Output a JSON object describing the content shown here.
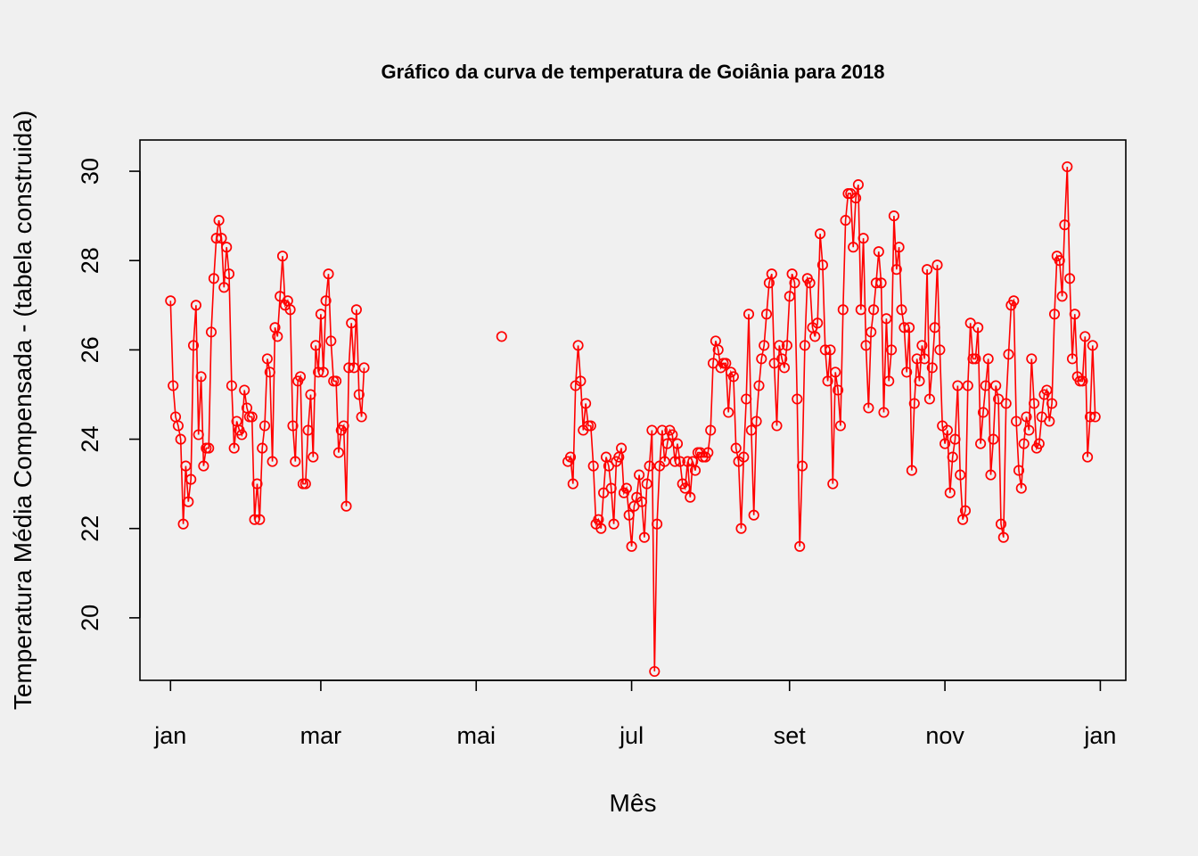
{
  "chart_data": {
    "type": "line",
    "title": "Gráfico da curva de temperatura de Goiânia para 2018",
    "xlabel": "Mês",
    "ylabel": "Temperatura Média Compensada - (tabela construida)",
    "xlim": [
      -12,
      375
    ],
    "ylim": [
      18.6,
      30.7
    ],
    "x_ticks": [
      {
        "label": "jan",
        "day": 0
      },
      {
        "label": "mar",
        "day": 59
      },
      {
        "label": "mai",
        "day": 120
      },
      {
        "label": "jul",
        "day": 181
      },
      {
        "label": "set",
        "day": 243
      },
      {
        "label": "nov",
        "day": 304
      },
      {
        "label": "jan",
        "day": 365
      }
    ],
    "y_ticks": [
      20,
      22,
      24,
      26,
      28,
      30
    ],
    "grid": false,
    "legend": "none",
    "color": "#ff0000",
    "series": [
      {
        "segments": [
          {
            "start_day": 0,
            "values": [
              27.1,
              25.2,
              24.5,
              24.3,
              24.0,
              22.1,
              23.4,
              22.6,
              23.1,
              26.1,
              27.0,
              24.1,
              25.4,
              23.4,
              23.8,
              23.8,
              26.4,
              27.6,
              28.5,
              28.9,
              28.5,
              27.4,
              28.3,
              27.7,
              25.2,
              23.8,
              24.4,
              24.2,
              24.1,
              25.1,
              24.7,
              24.5,
              24.5,
              22.2,
              23.0,
              22.2,
              23.8,
              24.3,
              25.8,
              25.5,
              23.5,
              26.5,
              26.3,
              27.2,
              28.1,
              27.0,
              27.1,
              26.9,
              24.3,
              23.5,
              25.3,
              25.4,
              23.0,
              23.0,
              24.2,
              25.0,
              23.6,
              26.1,
              25.5,
              26.8,
              25.5,
              27.1,
              27.7,
              26.2,
              25.3,
              25.3,
              23.7,
              24.2,
              24.3,
              22.5,
              25.6,
              26.6,
              25.6,
              26.9,
              25.0,
              24.5,
              25.6
            ]
          },
          {
            "start_day": 130,
            "values": [
              26.3
            ]
          },
          {
            "start_day": 156,
            "values": [
              23.5,
              23.6,
              23.0,
              25.2,
              26.1,
              25.3,
              24.2,
              24.8,
              24.3,
              24.3,
              23.4,
              22.1,
              22.2,
              22.0,
              22.8,
              23.6,
              23.4,
              22.9,
              22.1,
              23.5,
              23.6,
              23.8,
              22.8,
              22.9,
              22.3,
              21.6,
              22.5,
              22.7,
              23.2,
              22.6,
              21.8,
              23.0,
              23.4,
              24.2,
              18.8,
              22.1,
              23.4,
              24.2,
              23.5,
              23.9,
              24.2,
              24.1,
              23.5,
              23.9,
              23.5,
              23.0,
              22.9,
              23.5,
              22.7,
              23.5,
              23.3,
              23.7,
              23.7,
              23.6,
              23.6,
              23.7,
              24.2,
              25.7,
              26.2,
              26.0,
              25.6,
              25.7,
              25.7,
              24.6,
              25.5,
              25.4,
              23.8,
              23.5,
              22.0,
              23.6,
              24.9,
              26.8,
              24.2,
              22.3,
              24.4,
              25.2,
              25.8,
              26.1,
              26.8,
              27.5,
              27.7,
              25.7,
              24.3,
              26.1,
              25.8,
              25.6,
              26.1,
              27.2,
              27.7,
              27.5,
              24.9,
              21.6,
              23.4,
              26.1,
              27.6,
              27.5,
              26.5,
              26.3,
              26.6,
              28.6,
              27.9,
              26.0,
              25.3,
              26.0,
              23.0,
              25.5,
              25.1,
              24.3,
              26.9,
              28.9,
              29.5,
              29.5,
              28.3,
              29.4,
              29.7,
              26.9,
              28.5,
              26.1,
              24.7,
              26.4,
              26.9,
              27.5,
              28.2,
              27.5,
              24.6,
              26.7,
              25.3,
              26.0,
              29.0,
              27.8,
              28.3,
              26.9,
              26.5,
              25.5,
              26.5,
              23.3,
              24.8,
              25.8,
              25.3,
              26.1,
              25.8,
              27.8,
              24.9,
              25.6,
              26.5,
              27.9,
              26.0,
              24.3,
              23.9,
              24.2,
              22.8,
              23.6,
              24.0,
              25.2,
              23.2,
              22.2,
              22.4,
              25.2,
              26.6,
              25.8,
              25.8,
              26.5,
              23.9,
              24.6,
              25.2,
              25.8,
              23.2,
              24.0,
              25.2,
              24.9,
              22.1,
              21.8,
              24.8,
              25.9,
              27.0,
              27.1,
              24.4,
              23.3,
              22.9,
              23.9,
              24.5,
              24.2,
              25.8,
              24.8,
              23.8,
              23.9,
              24.5,
              25.0,
              25.1,
              24.4,
              24.8,
              26.8,
              28.1,
              28.0,
              27.2,
              28.8,
              30.1,
              27.6,
              25.8,
              26.8,
              25.4,
              25.3,
              25.3,
              26.3,
              23.6,
              24.5,
              26.1,
              24.5
            ]
          }
        ]
      }
    ]
  }
}
